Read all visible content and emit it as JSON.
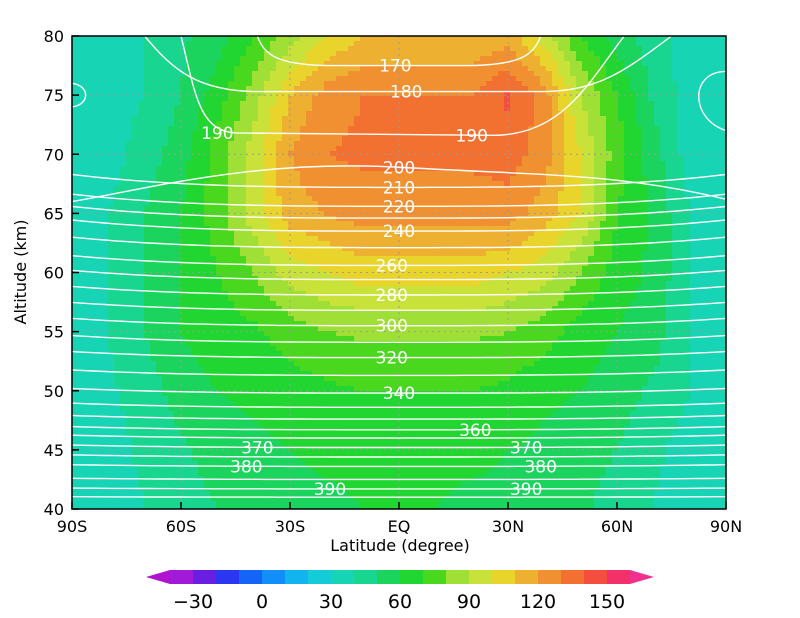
{
  "chart_data": {
    "type": "heatmap",
    "title": "",
    "xlabel": "Latitude (degree)",
    "ylabel": "Altitude (km)",
    "xlim": [
      -90,
      90
    ],
    "ylim": [
      40,
      80
    ],
    "x_ticks": [
      {
        "value": -90,
        "label": "90S"
      },
      {
        "value": -60,
        "label": "60S"
      },
      {
        "value": -30,
        "label": "30S"
      },
      {
        "value": 0,
        "label": "EQ"
      },
      {
        "value": 30,
        "label": "30N"
      },
      {
        "value": 60,
        "label": "60N"
      },
      {
        "value": 90,
        "label": "90N"
      }
    ],
    "y_ticks": [
      40,
      45,
      50,
      55,
      60,
      65,
      70,
      75,
      80
    ],
    "grid": "dotted",
    "colorbar": {
      "orientation": "horizontal",
      "placement": "bottom",
      "levels": [
        -40,
        -30,
        -20,
        -10,
        0,
        10,
        20,
        30,
        40,
        50,
        60,
        70,
        80,
        90,
        100,
        110,
        120,
        130,
        140,
        150,
        160
      ],
      "tick_labels": [
        -30,
        0,
        30,
        60,
        90,
        120,
        150
      ],
      "colors": [
        "#a01ad8",
        "#6a1ee0",
        "#2a36f0",
        "#1464f8",
        "#128ef8",
        "#12b4f0",
        "#14ccd8",
        "#16d4b4",
        "#18d690",
        "#1ad45e",
        "#22d632",
        "#4ad81e",
        "#a0e036",
        "#c8e23a",
        "#e8d42a",
        "#eeb030",
        "#f09030",
        "#f27030",
        "#f44e3e",
        "#f2306a"
      ],
      "extend_colors": {
        "low": "#b012d0",
        "high": "#f0308c"
      }
    },
    "contour_lines": {
      "series": "white line contours",
      "levels": [
        170,
        180,
        190,
        200,
        210,
        220,
        240,
        260,
        280,
        300,
        320,
        340,
        360,
        370,
        380,
        390
      ],
      "labels": [
        {
          "value": "170",
          "lat": -1,
          "alt": 77.5
        },
        {
          "value": "180",
          "lat": 2,
          "alt": 75.3
        },
        {
          "value": "190",
          "lat": -50,
          "alt": 71.8
        },
        {
          "value": "190",
          "lat": 20,
          "alt": 71.6
        },
        {
          "value": "200",
          "lat": 0,
          "alt": 68.9
        },
        {
          "value": "210",
          "lat": 0,
          "alt": 67.2
        },
        {
          "value": "220",
          "lat": 0,
          "alt": 65.6
        },
        {
          "value": "240",
          "lat": 0,
          "alt": 63.5
        },
        {
          "value": "260",
          "lat": -2,
          "alt": 60.6
        },
        {
          "value": "280",
          "lat": -2,
          "alt": 58.1
        },
        {
          "value": "300",
          "lat": -2,
          "alt": 55.5
        },
        {
          "value": "320",
          "lat": -2,
          "alt": 52.8
        },
        {
          "value": "340",
          "lat": 0,
          "alt": 49.8
        },
        {
          "value": "360",
          "lat": 21,
          "alt": 46.7
        },
        {
          "value": "370",
          "lat": -39,
          "alt": 45.2
        },
        {
          "value": "370",
          "lat": 35,
          "alt": 45.2
        },
        {
          "value": "380",
          "lat": -42,
          "alt": 43.6
        },
        {
          "value": "380",
          "lat": 39,
          "alt": 43.6
        },
        {
          "value": "390",
          "lat": -19,
          "alt": 41.7
        },
        {
          "value": "390",
          "lat": 35,
          "alt": 41.7
        }
      ]
    },
    "filled_field": [
      [
        30,
        30,
        30,
        30,
        30,
        30,
        30,
        30,
        30
      ],
      [
        35,
        36,
        38,
        40,
        40,
        40,
        35,
        35,
        35
      ],
      [
        40,
        42,
        45,
        50,
        50,
        50,
        45,
        40,
        40
      ],
      [
        45,
        48,
        55,
        60,
        60,
        60,
        55,
        50,
        48
      ],
      [
        50,
        55,
        60,
        65,
        70,
        75,
        75,
        65,
        55
      ],
      [
        55,
        58,
        62,
        68,
        80,
        95,
        95,
        85,
        70
      ],
      [
        56,
        60,
        65,
        75,
        95,
        115,
        120,
        110,
        85
      ],
      [
        58,
        62,
        68,
        80,
        100,
        120,
        130,
        125,
        100
      ],
      [
        60,
        62,
        70,
        82,
        105,
        125,
        132,
        130,
        110
      ],
      [
        60,
        62,
        70,
        82,
        105,
        125,
        132,
        130,
        110
      ],
      [
        60,
        62,
        70,
        82,
        105,
        125,
        132,
        130,
        110
      ],
      [
        58,
        62,
        70,
        82,
        105,
        125,
        132,
        130,
        110
      ],
      [
        58,
        60,
        68,
        80,
        100,
        125,
        135,
        142,
        115
      ],
      [
        55,
        58,
        62,
        75,
        95,
        115,
        125,
        125,
        95
      ],
      [
        52,
        55,
        60,
        65,
        80,
        100,
        100,
        90,
        70
      ],
      [
        45,
        50,
        55,
        60,
        65,
        70,
        75,
        70,
        55
      ],
      [
        40,
        42,
        48,
        55,
        58,
        58,
        55,
        48,
        45
      ],
      [
        35,
        36,
        40,
        40,
        40,
        40,
        35,
        35,
        35
      ],
      [
        30,
        30,
        30,
        30,
        30,
        30,
        30,
        30,
        30
      ]
    ],
    "filled_field_lats": [
      -90,
      -80,
      -70,
      -60,
      -50,
      -40,
      -30,
      -20,
      -10,
      0,
      10,
      20,
      30,
      40,
      50,
      60,
      70,
      80,
      90
    ],
    "filled_field_alts": [
      40,
      45,
      50,
      55,
      60,
      65,
      70,
      75,
      80
    ]
  }
}
